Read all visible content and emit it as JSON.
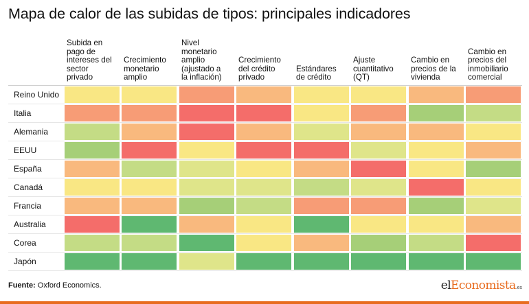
{
  "title": "Mapa de calor de las subidas de tipos: principales indicadores",
  "source_label": "Fuente:",
  "source_text": "Oxford Economics.",
  "logo": {
    "part1": "el",
    "part2": "Economista",
    "suffix": ".es"
  },
  "colors": {
    "R": "#f46d6a",
    "O": "#f79c76",
    "LO": "#f9b97e",
    "Y": "#f9e784",
    "YG": "#dfe58a",
    "LG": "#c4dc85",
    "G": "#a6cf78",
    "DG": "#5fb871"
  },
  "chart_data": {
    "type": "heatmap",
    "title": "Mapa de calor de las subidas de tipos: principales indicadores",
    "columns": [
      "Subida en pago de intereses del sector privado",
      "Crecimiento monetario amplio",
      "Nivel monetario amplio (ajustado a la inflación)",
      "Crecimiento del crédito privado",
      "Estándares de crédito",
      "Ajuste cuantitativo (QT)",
      "Cambio en precios de la vivienda",
      "Cambio en precios del inmobiliario comercial"
    ],
    "column_headers": [
      [
        "Subida en",
        "pago de",
        "intereses del",
        "sector",
        "privado"
      ],
      [
        "Crecimiento",
        "monetario",
        "amplio"
      ],
      [
        "Nivel",
        "monetario",
        "amplio",
        "(ajustado a",
        "la inflación)"
      ],
      [
        "Crecimiento",
        "del crédito",
        "privado"
      ],
      [
        "Estándares",
        "de crédito"
      ],
      [
        "Ajuste",
        "cuantitativo",
        "(QT)"
      ],
      [
        "Cambio en",
        "precios de la",
        "vivienda"
      ],
      [
        "Cambio en",
        "precios del",
        "inmobiliario",
        "comercial"
      ]
    ],
    "rows": [
      "Reino Unido",
      "Italia",
      "Alemania",
      "EEUU",
      "España",
      "Canadá",
      "Francia",
      "Australia",
      "Corea",
      "Japón"
    ],
    "cells": [
      [
        "Y",
        "Y",
        "O",
        "LO",
        "Y",
        "Y",
        "LO",
        "O"
      ],
      [
        "O",
        "O",
        "R",
        "R",
        "Y",
        "O",
        "G",
        "LG"
      ],
      [
        "LG",
        "LO",
        "R",
        "LO",
        "YG",
        "LO",
        "LO",
        "Y"
      ],
      [
        "G",
        "R",
        "Y",
        "R",
        "R",
        "YG",
        "Y",
        "LO"
      ],
      [
        "LO",
        "LG",
        "YG",
        "Y",
        "LO",
        "R",
        "Y",
        "G"
      ],
      [
        "Y",
        "Y",
        "YG",
        "YG",
        "LG",
        "YG",
        "R",
        "Y"
      ],
      [
        "LO",
        "LO",
        "G",
        "LG",
        "O",
        "O",
        "G",
        "YG"
      ],
      [
        "R",
        "DG",
        "LO",
        "Y",
        "DG",
        "Y",
        "Y",
        "LO"
      ],
      [
        "LG",
        "LG",
        "DG",
        "Y",
        "LO",
        "G",
        "LG",
        "R"
      ],
      [
        "DG",
        "DG",
        "YG",
        "DG",
        "DG",
        "DG",
        "DG",
        "DG"
      ]
    ]
  }
}
